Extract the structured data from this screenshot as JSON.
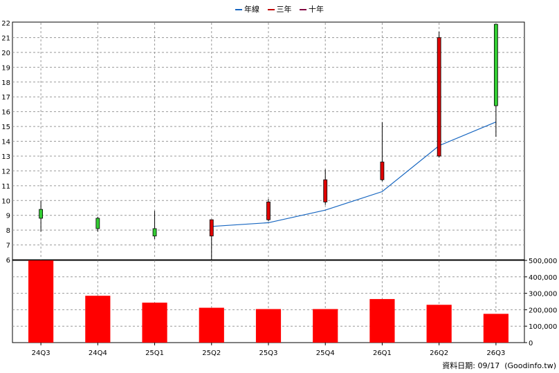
{
  "legend": [
    {
      "label": "年線",
      "color": "#1565c0"
    },
    {
      "label": "三年",
      "color": "#c00000"
    },
    {
      "label": "十年",
      "color": "#800040"
    }
  ],
  "footer": {
    "date_label": "資料日期: 09/17",
    "source": "(Goodinfo.tw)"
  },
  "colors": {
    "up": "#e00000",
    "down": "#33cc33",
    "volume": "#ff0000",
    "ma_line": "#1565c0",
    "grid": "#999999"
  },
  "chart_data": {
    "type": "candlestick",
    "categories": [
      "24Q3",
      "24Q4",
      "25Q1",
      "25Q2",
      "25Q3",
      "25Q4",
      "26Q1",
      "26Q2",
      "26Q3"
    ],
    "ohlc": [
      {
        "open": 9.4,
        "high": 10.0,
        "low": 7.9,
        "close": 8.8
      },
      {
        "open": 8.8,
        "high": 8.9,
        "low": 7.9,
        "close": 8.1
      },
      {
        "open": 8.1,
        "high": 9.3,
        "low": 7.4,
        "close": 7.6
      },
      {
        "open": 7.6,
        "high": 8.7,
        "low": 6.0,
        "close": 8.7
      },
      {
        "open": 8.7,
        "high": 10.1,
        "low": 8.6,
        "close": 9.9
      },
      {
        "open": 9.9,
        "high": 12.1,
        "low": 9.7,
        "close": 11.4
      },
      {
        "open": 11.4,
        "high": 15.3,
        "low": 11.3,
        "close": 12.6
      },
      {
        "open": 13.0,
        "high": 21.4,
        "low": 12.9,
        "close": 21.0
      },
      {
        "open": 21.9,
        "high": 21.9,
        "low": 14.3,
        "close": 16.4
      }
    ],
    "ma_line": {
      "name": "年線",
      "start_index": 3,
      "values": [
        8.25,
        8.5,
        9.35,
        10.6,
        13.7,
        15.3
      ]
    },
    "volume": [
      500000,
      285000,
      243000,
      212000,
      204000,
      204000,
      265000,
      230000,
      175000
    ],
    "price_axis": {
      "min": 6,
      "max": 22,
      "ticks": [
        6,
        7,
        8,
        9,
        10,
        11,
        12,
        13,
        14,
        15,
        16,
        17,
        18,
        19,
        20,
        21,
        22
      ]
    },
    "volume_axis": {
      "min": 0,
      "max": 500000,
      "ticks": [
        0,
        100000,
        200000,
        300000,
        400000,
        500000
      ],
      "tick_labels": [
        "0",
        "100,000",
        "200,000",
        "300,000",
        "400,000",
        "500,000"
      ]
    },
    "grid": true,
    "legend_position": "top-center"
  }
}
